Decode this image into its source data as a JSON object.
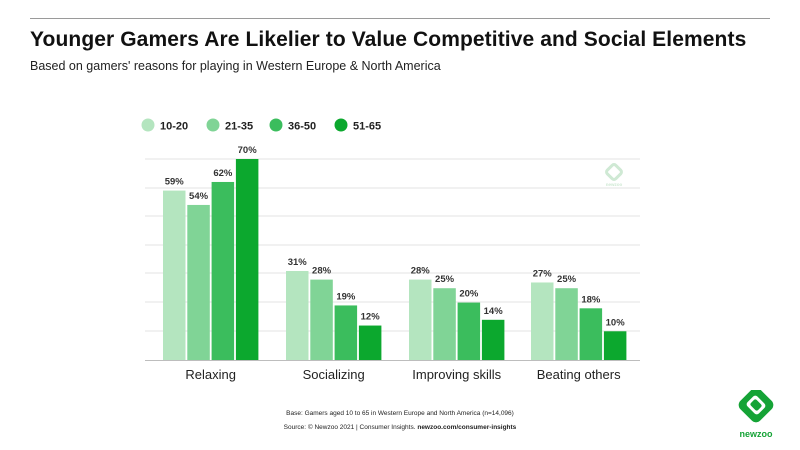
{
  "header": {
    "title": "Younger Gamers Are Likelier to Value Competitive and Social Elements",
    "subtitle": "Based on gamers' reasons for playing in Western Europe & North America"
  },
  "chart_data": {
    "type": "bar",
    "categories": [
      "Relaxing",
      "Socializing",
      "Improving skills",
      "Beating others"
    ],
    "series": [
      {
        "name": "10-20",
        "color": "#b4e5bf",
        "values": [
          59,
          31,
          28,
          27
        ]
      },
      {
        "name": "21-35",
        "color": "#80d496",
        "values": [
          54,
          28,
          25,
          25
        ]
      },
      {
        "name": "36-50",
        "color": "#3bbd5d",
        "values": [
          62,
          19,
          20,
          18
        ]
      },
      {
        "name": "51-65",
        "color": "#0ca82e",
        "values": [
          70,
          12,
          14,
          10
        ]
      }
    ],
    "value_suffix": "%",
    "ylim": [
      0,
      70
    ],
    "grid": true,
    "legend": "top-left",
    "xlabel": "",
    "ylabel": ""
  },
  "footer": {
    "base": "Base: Gamers aged 10 to 65 in Western Europe and North America (n=14,096)",
    "source": "Source: © Newzoo 2021 | Consumer Insights.",
    "source_link": "newzoo.com/consumer-insights"
  },
  "brand": {
    "name": "newzoo",
    "color": "#15a336",
    "watermark_name": "newzoo"
  }
}
